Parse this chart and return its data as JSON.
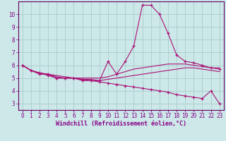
{
  "xlabel": "Windchill (Refroidissement éolien,°C)",
  "bg_color": "#cce8e8",
  "grid_color": "#aacccc",
  "line_color": "#aa1177",
  "spine_color": "#660066",
  "xlim": [
    -0.5,
    23.5
  ],
  "ylim": [
    2.5,
    11.0
  ],
  "xticks": [
    0,
    1,
    2,
    3,
    4,
    5,
    6,
    7,
    8,
    9,
    10,
    11,
    12,
    13,
    14,
    15,
    16,
    17,
    18,
    19,
    20,
    21,
    22,
    23
  ],
  "yticks": [
    3,
    4,
    5,
    6,
    7,
    8,
    9,
    10
  ],
  "lines": [
    {
      "x": [
        0,
        1,
        2,
        3,
        4,
        5,
        6,
        7,
        8,
        9,
        10,
        11,
        12,
        13,
        14,
        15,
        16,
        17,
        18,
        19,
        20,
        21,
        22,
        23
      ],
      "y": [
        6.0,
        5.6,
        5.3,
        5.3,
        5.0,
        5.0,
        5.0,
        4.8,
        4.8,
        4.8,
        6.3,
        5.3,
        6.3,
        7.5,
        10.7,
        10.7,
        10.0,
        8.5,
        6.8,
        6.3,
        6.2,
        6.0,
        5.8,
        5.7
      ],
      "marker": "+"
    },
    {
      "x": [
        0,
        1,
        2,
        3,
        4,
        5,
        6,
        7,
        8,
        9,
        10,
        11,
        12,
        13,
        14,
        15,
        16,
        17,
        18,
        19,
        20,
        21,
        22,
        23
      ],
      "y": [
        6.0,
        5.6,
        5.4,
        5.3,
        5.2,
        5.1,
        5.0,
        5.0,
        5.0,
        5.0,
        5.1,
        5.3,
        5.5,
        5.7,
        5.8,
        5.9,
        6.0,
        6.1,
        6.1,
        6.1,
        6.0,
        5.9,
        5.8,
        5.8
      ],
      "marker": null
    },
    {
      "x": [
        0,
        1,
        2,
        3,
        4,
        5,
        6,
        7,
        8,
        9,
        10,
        11,
        12,
        13,
        14,
        15,
        16,
        17,
        18,
        19,
        20,
        21,
        22,
        23
      ],
      "y": [
        6.0,
        5.6,
        5.4,
        5.3,
        5.1,
        5.0,
        5.0,
        4.9,
        4.9,
        4.8,
        4.9,
        5.0,
        5.1,
        5.2,
        5.3,
        5.4,
        5.5,
        5.6,
        5.7,
        5.8,
        5.8,
        5.7,
        5.6,
        5.5
      ],
      "marker": null
    },
    {
      "x": [
        0,
        1,
        2,
        3,
        4,
        5,
        6,
        7,
        8,
        9,
        10,
        11,
        12,
        13,
        14,
        15,
        16,
        17,
        18,
        19,
        20,
        21,
        22,
        23
      ],
      "y": [
        6.0,
        5.6,
        5.4,
        5.2,
        5.0,
        5.0,
        5.0,
        4.9,
        4.8,
        4.7,
        4.6,
        4.5,
        4.4,
        4.3,
        4.2,
        4.1,
        4.0,
        3.9,
        3.7,
        3.6,
        3.5,
        3.4,
        4.0,
        3.0
      ],
      "marker": "+"
    }
  ],
  "label_fontsize": 6.0,
  "tick_fontsize": 5.5,
  "tick_color": "#880088",
  "label_color": "#880088"
}
